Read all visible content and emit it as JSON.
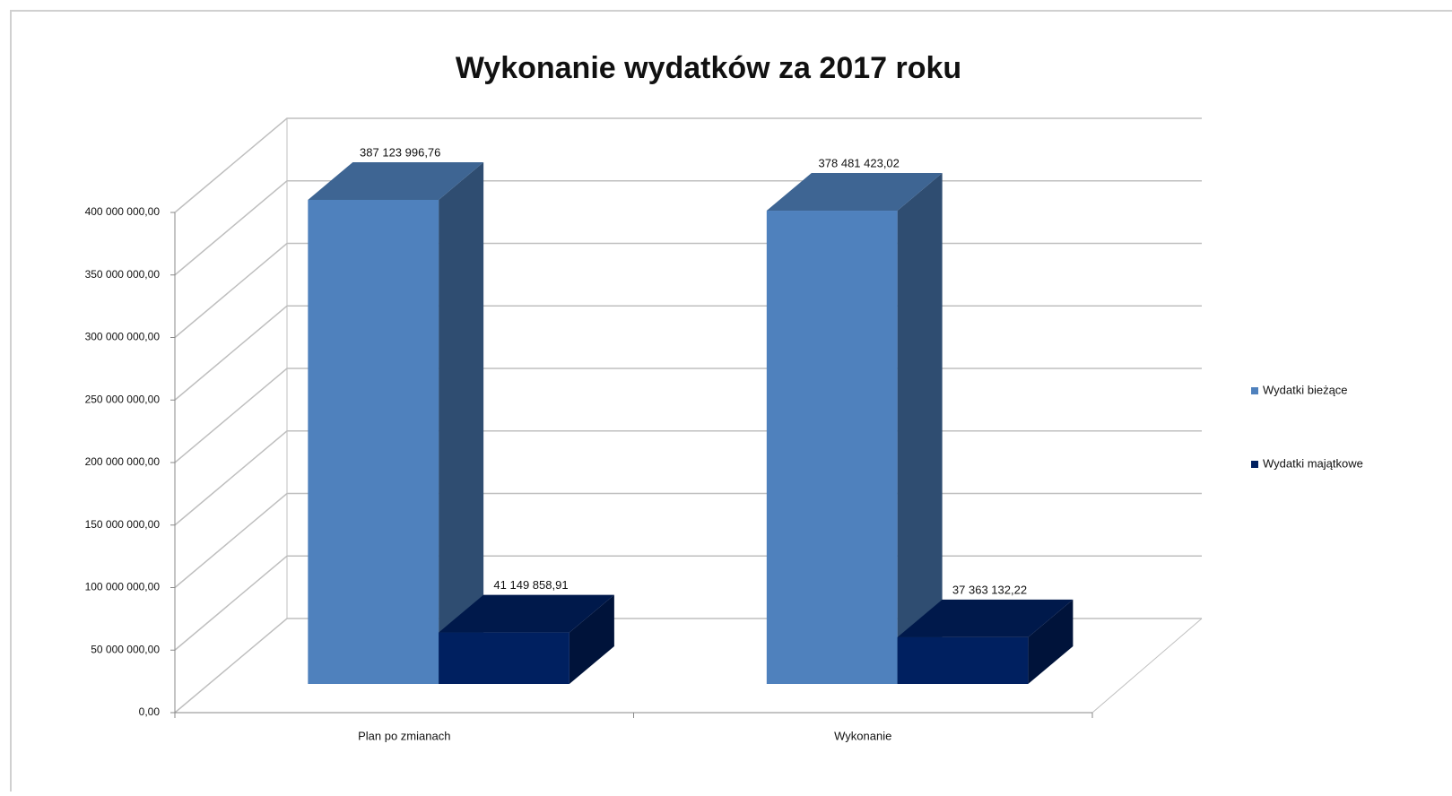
{
  "chart_data": {
    "type": "bar3d",
    "title": "Wykonanie wydatków za 2017 roku",
    "categories": [
      "Plan po zmianach",
      "Wykonanie"
    ],
    "series": [
      {
        "name": "Wydatki bieżące",
        "color": "#4f81bd",
        "values": [
          387123996.76,
          378481423.02
        ],
        "value_labels": [
          "387 123 996,76",
          "378 481 423,02"
        ]
      },
      {
        "name": "Wydatki majątkowe",
        "color": "#002060",
        "values": [
          41149858.91,
          37363132.22
        ],
        "value_labels": [
          "41 149 858,91",
          "37 363 132,22"
        ]
      }
    ],
    "ylim": [
      0,
      400000000
    ],
    "yticks": [
      {
        "value": 0,
        "label": "0,00"
      },
      {
        "value": 50000000,
        "label": "50 000 000,00"
      },
      {
        "value": 100000000,
        "label": "100 000 000,00"
      },
      {
        "value": 150000000,
        "label": "150 000 000,00"
      },
      {
        "value": 200000000,
        "label": "200 000 000,00"
      },
      {
        "value": 250000000,
        "label": "250 000 000,00"
      },
      {
        "value": 300000000,
        "label": "300 000 000,00"
      },
      {
        "value": 350000000,
        "label": "350 000 000,00"
      },
      {
        "value": 400000000,
        "label": "400 000 000,00"
      }
    ],
    "grid": true,
    "legend": "right"
  }
}
